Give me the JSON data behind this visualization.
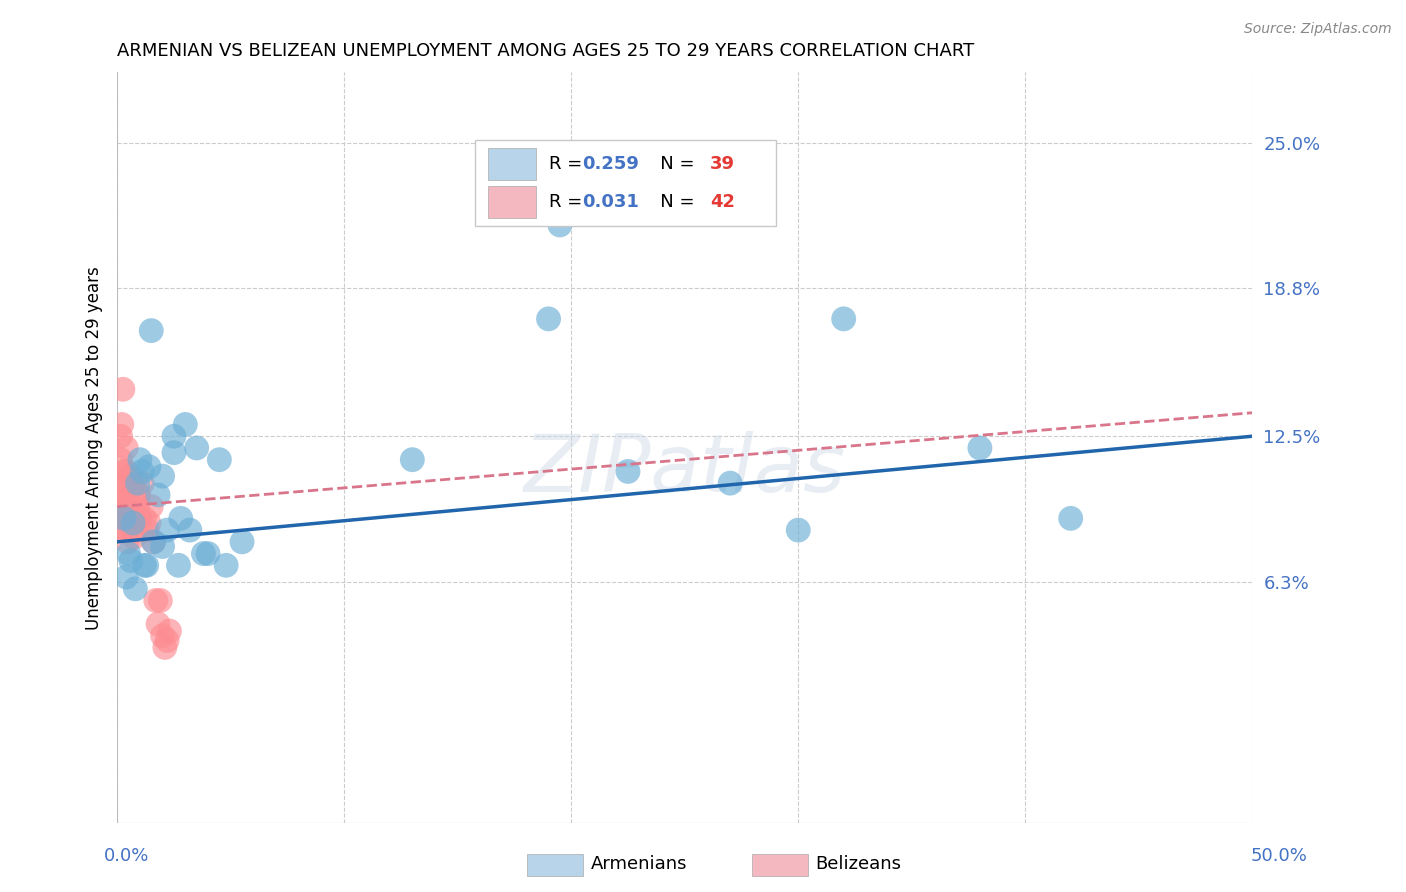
{
  "title": "ARMENIAN VS BELIZEAN UNEMPLOYMENT AMONG AGES 25 TO 29 YEARS CORRELATION CHART",
  "source": "Source: ZipAtlas.com",
  "ylabel_label": "Unemployment Among Ages 25 to 29 years",
  "xlim": [
    0.0,
    50.0
  ],
  "ylim_bottom": -4.0,
  "ylim_top": 28.0,
  "ytick_vals": [
    6.3,
    12.5,
    18.8,
    25.0
  ],
  "ytick_labels": [
    "6.3%",
    "12.5%",
    "18.8%",
    "25.0%"
  ],
  "xtick_vals": [
    0,
    10,
    20,
    30,
    40,
    50
  ],
  "armenian_R": "0.259",
  "armenian_N": "39",
  "belizean_R": "0.031",
  "belizean_N": "42",
  "armenian_color": "#6baed6",
  "belizean_color": "#fc8d92",
  "armenian_line_color": "#2166ac",
  "belizean_line_color": "#d9758a",
  "legend_box_armenian": "#b8d4ea",
  "legend_box_belizean": "#f4b8c1",
  "watermark": "ZIPatlas",
  "armenians_x": [
    0.3,
    0.5,
    0.7,
    0.9,
    1.1,
    1.4,
    1.8,
    2.2,
    2.8,
    3.5,
    0.4,
    0.8,
    1.2,
    1.6,
    2.0,
    2.5,
    3.2,
    4.0,
    4.8,
    5.5,
    1.0,
    1.5,
    2.0,
    2.5,
    3.0,
    4.5,
    13.0,
    19.5,
    22.5,
    27.0,
    30.0,
    32.0,
    38.0,
    42.0,
    19.0,
    0.6,
    1.3,
    2.7,
    3.8
  ],
  "armenians_y": [
    9.0,
    7.5,
    8.8,
    10.5,
    11.0,
    11.2,
    10.0,
    8.5,
    9.0,
    12.0,
    6.5,
    6.0,
    7.0,
    8.0,
    7.8,
    12.5,
    8.5,
    7.5,
    7.0,
    8.0,
    11.5,
    17.0,
    10.8,
    11.8,
    13.0,
    11.5,
    11.5,
    21.5,
    11.0,
    10.5,
    8.5,
    17.5,
    12.0,
    9.0,
    17.5,
    7.2,
    7.0,
    7.0,
    7.5
  ],
  "belizeans_x": [
    0.05,
    0.1,
    0.15,
    0.2,
    0.25,
    0.3,
    0.35,
    0.4,
    0.45,
    0.5,
    0.1,
    0.15,
    0.2,
    0.25,
    0.3,
    0.35,
    0.4,
    0.45,
    0.5,
    0.55,
    0.6,
    0.65,
    0.7,
    0.75,
    0.8,
    0.85,
    0.9,
    0.95,
    1.0,
    1.1,
    1.2,
    1.3,
    1.4,
    1.5,
    1.6,
    1.7,
    1.8,
    1.9,
    2.0,
    2.1,
    2.2,
    2.3
  ],
  "belizeans_y": [
    9.5,
    10.5,
    11.5,
    13.0,
    14.5,
    8.5,
    9.8,
    11.0,
    8.0,
    9.5,
    10.0,
    12.5,
    8.5,
    9.0,
    11.0,
    10.5,
    12.0,
    8.8,
    9.2,
    10.8,
    9.5,
    9.0,
    10.5,
    8.2,
    9.8,
    8.5,
    9.5,
    10.0,
    9.0,
    10.5,
    9.0,
    8.5,
    8.8,
    9.5,
    8.0,
    5.5,
    4.5,
    5.5,
    4.0,
    3.5,
    3.8,
    4.2
  ],
  "arm_trend_x": [
    0,
    50
  ],
  "arm_trend_y": [
    8.0,
    12.5
  ],
  "bel_trend_x": [
    0,
    50
  ],
  "bel_trend_y": [
    9.5,
    13.5
  ]
}
